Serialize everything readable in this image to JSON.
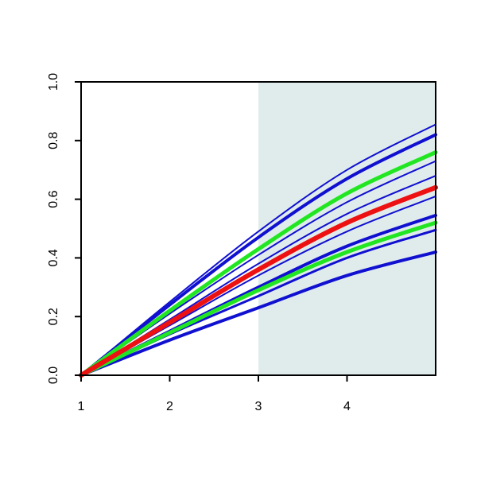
{
  "chart_data": {
    "type": "line",
    "x": [
      1,
      2,
      3,
      4,
      5
    ],
    "xlim": [
      1,
      5
    ],
    "xticks": [
      1,
      2,
      3,
      4
    ],
    "ylim": [
      0,
      1
    ],
    "yticks": [
      {
        "value": 0,
        "label": "0.0"
      },
      0.2,
      0.4,
      0.6,
      0.8,
      {
        "value": 1,
        "label": "1.0"
      }
    ],
    "shaded_xrange": [
      3,
      5
    ],
    "shade_color": "#e0ecec",
    "series": [
      {
        "color": "#1010d0",
        "lw": 2,
        "values": [
          0,
          0.25,
          0.49,
          0.7,
          0.855
        ]
      },
      {
        "color": "#1010d0",
        "lw": 4,
        "values": [
          0,
          0.24,
          0.47,
          0.67,
          0.82
        ]
      },
      {
        "color": "#1010d0",
        "lw": 2,
        "values": [
          0,
          0.21,
          0.41,
          0.59,
          0.73
        ]
      },
      {
        "color": "#1010d0",
        "lw": 2,
        "values": [
          0,
          0.19,
          0.38,
          0.55,
          0.68
        ]
      },
      {
        "color": "#1010d0",
        "lw": 2,
        "values": [
          0,
          0.17,
          0.34,
          0.49,
          0.61
        ]
      },
      {
        "color": "#1010d0",
        "lw": 4,
        "values": [
          0,
          0.15,
          0.3,
          0.44,
          0.545
        ]
      },
      {
        "color": "#1010d0",
        "lw": 3,
        "values": [
          0,
          0.14,
          0.27,
          0.4,
          0.495
        ]
      },
      {
        "color": "#1010d0",
        "lw": 4,
        "values": [
          0,
          0.12,
          0.23,
          0.34,
          0.42
        ]
      },
      {
        "color": "#22e622",
        "lw": 5,
        "values": [
          0,
          0.22,
          0.43,
          0.62,
          0.76
        ]
      },
      {
        "color": "#22e622",
        "lw": 5,
        "values": [
          0,
          0.145,
          0.29,
          0.42,
          0.52
        ]
      },
      {
        "color": "#ee1111",
        "lw": 6,
        "values": [
          0,
          0.18,
          0.36,
          0.52,
          0.64
        ]
      }
    ]
  }
}
